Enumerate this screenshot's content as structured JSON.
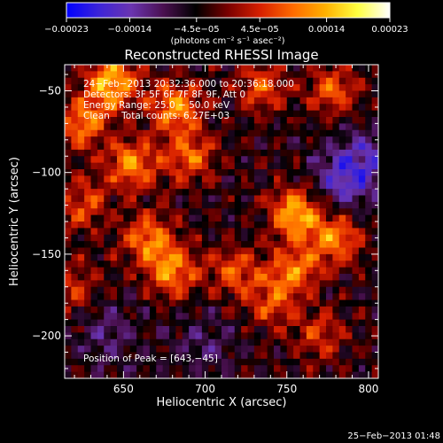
{
  "chart_data": {
    "type": "heatmap",
    "title": "Reconstructed RHESSI Image",
    "xlabel": "Heliocentric X (arcsec)",
    "ylabel": "Heliocentric Y (arcsec)",
    "xlim": [
      614,
      806
    ],
    "ylim": [
      -226,
      -34
    ],
    "x_ticks": [
      650,
      700,
      750,
      800
    ],
    "x_tick_labels": [
      "650",
      "700",
      "750",
      "800"
    ],
    "y_ticks": [
      -50,
      -100,
      -150,
      -200
    ],
    "y_tick_labels": [
      "−50",
      "−100",
      "−150",
      "−200"
    ],
    "colorbar": {
      "range": [
        -0.00023,
        0.00023
      ],
      "ticks": [
        -0.00023,
        -0.00014,
        -4.5e-05,
        4.5e-05,
        0.00014,
        0.00023
      ],
      "tick_labels": [
        "−0.00023",
        "−0.00014",
        "−4.5e−05",
        "4.5e−05",
        "0.00014",
        "0.00023"
      ],
      "unit_label": "(photons cm⁻² s⁻¹ asec⁻²)",
      "colormap": [
        "#0000ff",
        "#3c24d8",
        "#6a34b0",
        "#4a1050",
        "#000000",
        "#7a0000",
        "#d82000",
        "#ff6a00",
        "#ffb000",
        "#ffff40",
        "#ffffff"
      ]
    },
    "annotations": [
      "24−Feb−2013 20:32:36.000 to 20:36:18.000",
      "Detectors: 3F 5F 6F 7F 8F 9F, Att 0",
      "Energy Range: 25.0 − 50.0 keV",
      "Clean    Total counts: 6.27E+03"
    ],
    "peak_label": "Position of Peak = [643,−45]",
    "peak_position": [
      643,
      -45
    ],
    "grid": false,
    "bright_sources": [
      {
        "x": 643,
        "y": -45,
        "strength": 1.0
      },
      {
        "x": 682,
        "y": -60,
        "strength": 0.8
      },
      {
        "x": 735,
        "y": -48,
        "strength": 0.55
      },
      {
        "x": 778,
        "y": -50,
        "strength": 0.6
      },
      {
        "x": 625,
        "y": -70,
        "strength": 0.7
      },
      {
        "x": 655,
        "y": -95,
        "strength": 0.75
      },
      {
        "x": 690,
        "y": -90,
        "strength": 0.65
      },
      {
        "x": 625,
        "y": -120,
        "strength": 0.55
      },
      {
        "x": 665,
        "y": -140,
        "strength": 0.7
      },
      {
        "x": 680,
        "y": -160,
        "strength": 0.75
      },
      {
        "x": 718,
        "y": -160,
        "strength": 0.55
      },
      {
        "x": 755,
        "y": -125,
        "strength": 0.9
      },
      {
        "x": 780,
        "y": -140,
        "strength": 0.75
      },
      {
        "x": 755,
        "y": -160,
        "strength": 0.7
      },
      {
        "x": 740,
        "y": -180,
        "strength": 0.5
      },
      {
        "x": 770,
        "y": -200,
        "strength": 0.45
      },
      {
        "x": 620,
        "y": -170,
        "strength": 0.45
      }
    ],
    "dim_regions": [
      {
        "x": 785,
        "y": -105,
        "strength": 0.9
      },
      {
        "x": 800,
        "y": -90,
        "strength": 0.6
      },
      {
        "x": 640,
        "y": -200,
        "strength": 0.5
      },
      {
        "x": 700,
        "y": -205,
        "strength": 0.45
      }
    ]
  },
  "footer_timestamp": "25−Feb−2013 01:48"
}
